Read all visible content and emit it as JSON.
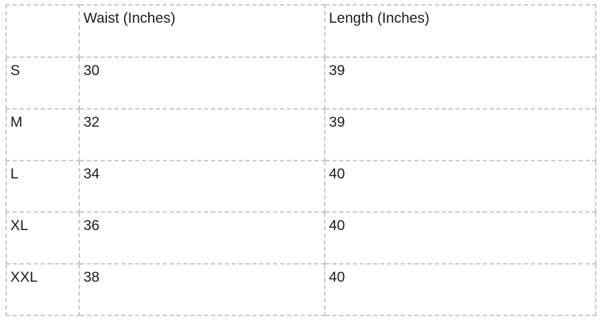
{
  "page": {
    "background_color": "#ffffff"
  },
  "table": {
    "name": "size-chart",
    "border_color": "#c8c8c8",
    "text_color": "#1d1d1f",
    "columns": [
      "",
      "Waist (Inches)",
      "Length (Inches)"
    ],
    "rows": [
      {
        "size": "S",
        "waist": "30",
        "length": "39"
      },
      {
        "size": "M",
        "waist": "32",
        "length": "39"
      },
      {
        "size": "L",
        "waist": "34",
        "length": "40"
      },
      {
        "size": "XL",
        "waist": "36",
        "length": "40"
      },
      {
        "size": "XXL",
        "waist": "38",
        "length": "40"
      }
    ]
  }
}
